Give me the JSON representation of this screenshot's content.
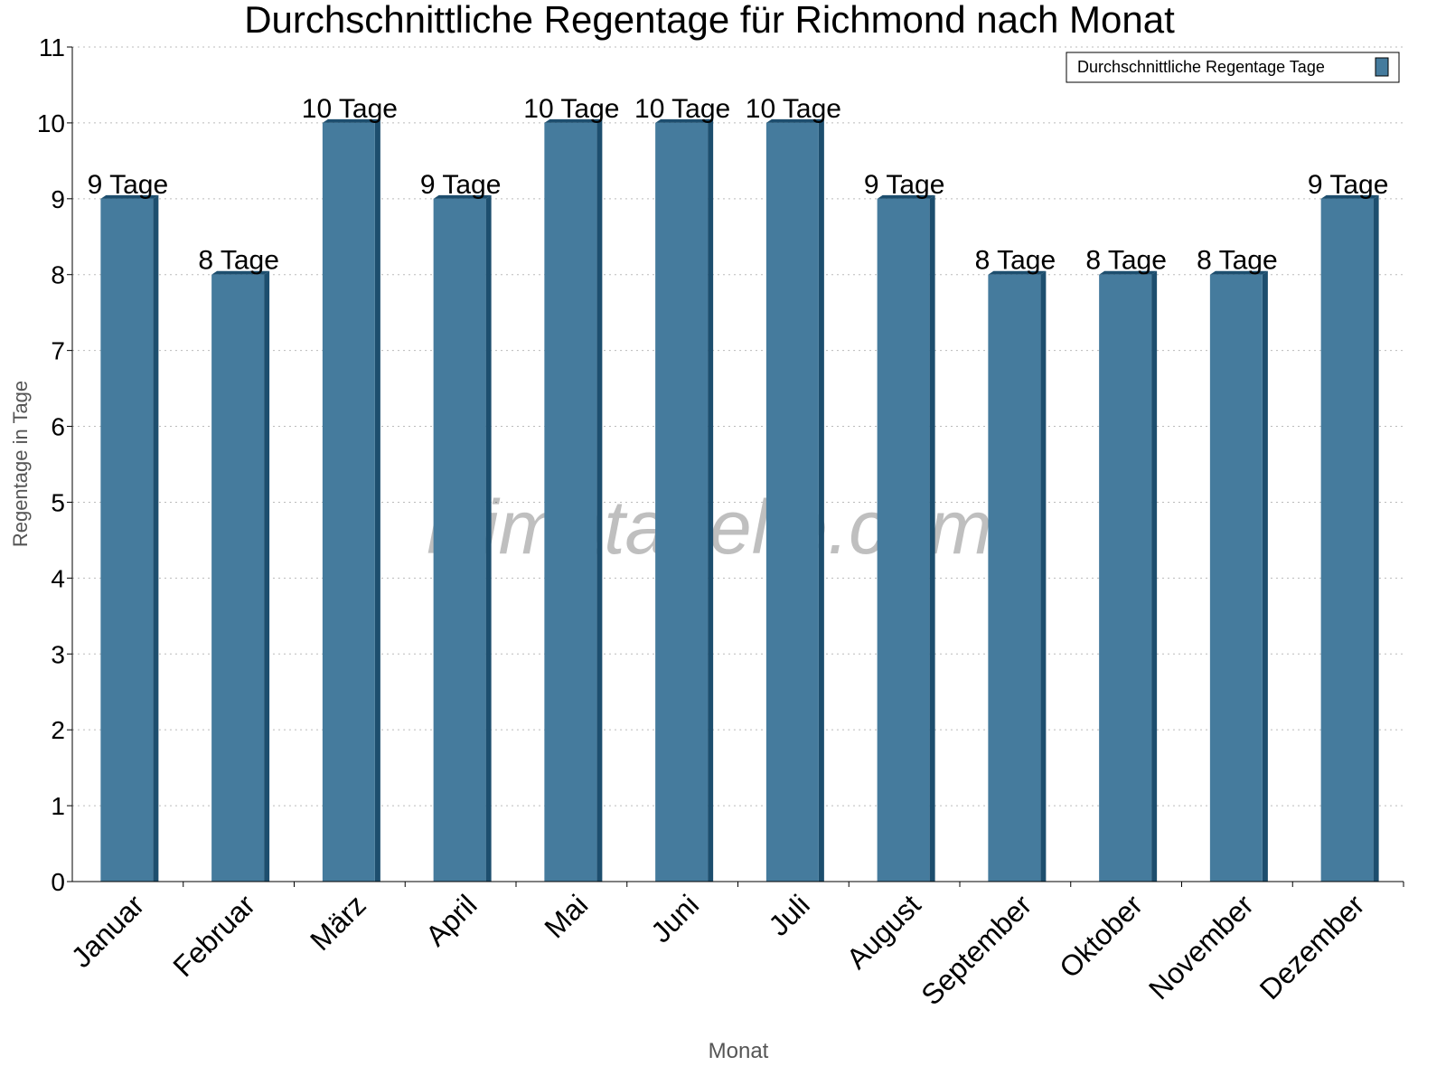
{
  "chart_data": {
    "type": "bar",
    "title": "Durchschnittliche Regentage für Richmond nach Monat",
    "xlabel": "Monat",
    "ylabel": "Regentage in Tage",
    "ylim": [
      0,
      11
    ],
    "yticks": [
      0,
      1,
      2,
      3,
      4,
      5,
      6,
      7,
      8,
      9,
      10,
      11
    ],
    "grid": true,
    "legend_position": "top-right",
    "categories": [
      "Januar",
      "Februar",
      "März",
      "April",
      "Mai",
      "Juni",
      "Juli",
      "August",
      "September",
      "Oktober",
      "November",
      "Dezember"
    ],
    "series": [
      {
        "name": "Durchschnittliche Regentage Tage",
        "color": "#457b9d",
        "values": [
          9,
          8,
          10,
          9,
          10,
          10,
          10,
          9,
          8,
          8,
          8,
          9
        ]
      }
    ],
    "data_labels": [
      "9 Tage",
      "8 Tage",
      "10 Tage",
      "9 Tage",
      "10 Tage",
      "10 Tage",
      "10 Tage",
      "9 Tage",
      "8 Tage",
      "8 Tage",
      "8 Tage",
      "9 Tage"
    ],
    "watermark": "klimatabelle.com"
  }
}
